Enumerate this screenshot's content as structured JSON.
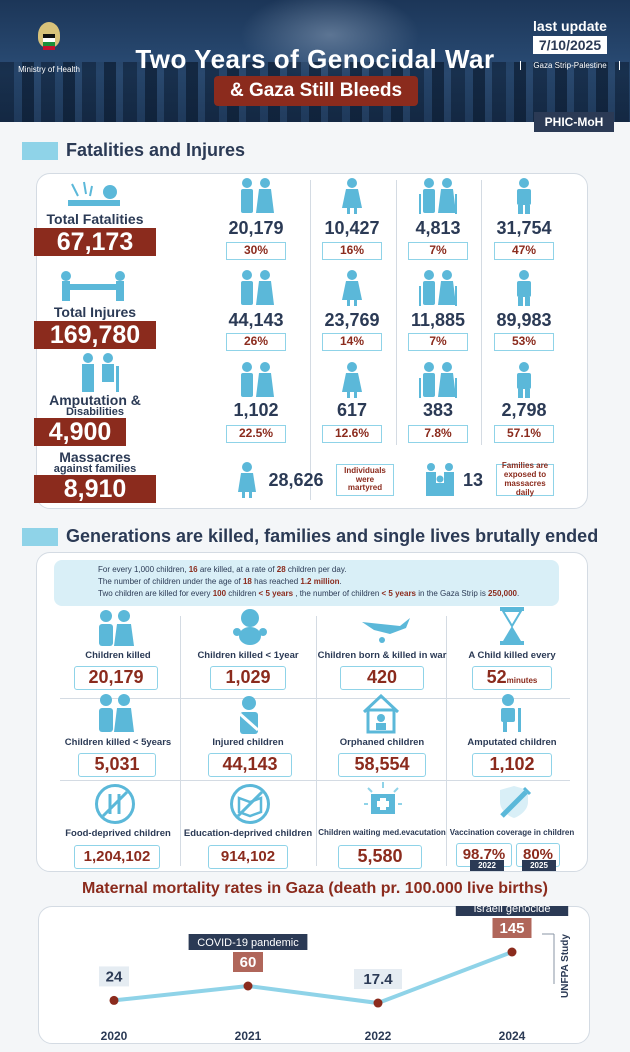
{
  "header": {
    "ministry": "Ministry of Health",
    "title": "Two Years of Genocidal War",
    "subtitle": "& Gaza Still Bleeds",
    "last_update_label": "last update",
    "last_update_date": "7/10/2025",
    "location": "Gaza Strip-Palestine",
    "source_badge": "PHIC-MoH"
  },
  "section1": {
    "heading": "Fatalities and Injures",
    "rows": [
      {
        "label": "Total Fatalities",
        "total": "67,173",
        "stats": [
          {
            "num": "20,179",
            "pct": "30%"
          },
          {
            "num": "10,427",
            "pct": "16%"
          },
          {
            "num": "4,813",
            "pct": "7%"
          },
          {
            "num": "31,754",
            "pct": "47%"
          }
        ]
      },
      {
        "label": "Total Injures",
        "total": "169,780",
        "stats": [
          {
            "num": "44,143",
            "pct": "26%"
          },
          {
            "num": "23,769",
            "pct": "14%"
          },
          {
            "num": "11,885",
            "pct": "7%"
          },
          {
            "num": "89,983",
            "pct": "53%"
          }
        ]
      },
      {
        "label_line1": "Amputation &",
        "label_line2": "Disabilities",
        "total": "4,900",
        "stats": [
          {
            "num": "1,102",
            "pct": "22.5%"
          },
          {
            "num": "617",
            "pct": "12.6%"
          },
          {
            "num": "383",
            "pct": "7.8%"
          },
          {
            "num": "2,798",
            "pct": "57.1%"
          }
        ]
      }
    ],
    "massacres": {
      "label_line1": "Massacres",
      "label_line2": "against families",
      "total": "8,910",
      "individuals_num": "28,626",
      "individuals_note": "Individuals were martyred",
      "families_num": "13",
      "families_note": "Families are exposed to massacres daily"
    }
  },
  "section2": {
    "heading": "Generations are killed, families and single lives brutally ended",
    "info": {
      "l1_a": "For every 1,000 children, ",
      "l1_b": "16",
      "l1_c": " are killed, at a rate of ",
      "l1_d": "28",
      "l1_e": " children per day.",
      "l2_a": "The number of children under the age of ",
      "l2_b": "18",
      "l2_c": " has reached ",
      "l2_d": "1.2 million",
      "l2_e": ".",
      "l3_a": "Two children are killed for every ",
      "l3_b": "100",
      "l3_c": " children ",
      "l3_d": "< 5 years",
      "l3_e": " , the number of children ",
      "l3_f": "< 5 years",
      "l3_g": " in the Gaza Strip is ",
      "l3_h": "250,000",
      "l3_i": "."
    },
    "cards": [
      {
        "label": "Children killed",
        "value": "20,179"
      },
      {
        "label": "Children killed < 1year",
        "value": "1,029"
      },
      {
        "label": "Children born & killed in war",
        "value": "420"
      },
      {
        "label": "A Child killed every",
        "value": "52",
        "unit": "minutes"
      },
      {
        "label": "Children killed < 5years",
        "value": "5,031"
      },
      {
        "label": "Injured children",
        "value": "44,143"
      },
      {
        "label": "Orphaned children",
        "value": "58,554"
      },
      {
        "label": "Amputated children",
        "value": "1,102"
      },
      {
        "label": "Food-deprived children",
        "value": "1,204,102"
      },
      {
        "label": "Education-deprived children",
        "value": "914,102"
      },
      {
        "label": "Children waiting med.evacutation",
        "value": "5,580"
      },
      {
        "label": "Vaccination coverage in children",
        "value_a": "98.7%",
        "value_b": "80%",
        "year_a": "2022",
        "year_b": "2025"
      }
    ]
  },
  "section3": {
    "heading": "Maternal mortality rates in Gaza (death pr. 100.000 live births)",
    "annotation_covid": "COVID-19 pandemic",
    "annotation_genocide": "Israeli genocide",
    "source": "UNFPA Study"
  },
  "chart_data": {
    "type": "line",
    "title": "Maternal mortality rates in Gaza (death pr. 100.000 live births)",
    "categories": [
      "2020",
      "2021",
      "2022",
      "2024"
    ],
    "values": [
      24,
      60,
      17.4,
      145
    ],
    "value_labels": [
      "24",
      "60",
      "17.4",
      "145"
    ],
    "xlabel": "",
    "ylabel": "",
    "ylim": [
      0,
      160
    ],
    "annotations": [
      {
        "x": "2021",
        "text": "COVID-19 pandemic"
      },
      {
        "x": "2024",
        "text": "Israeli genocide"
      }
    ],
    "colors": {
      "line": "#8fd3e8",
      "point": "#8b2b1d",
      "label_bg": "#e5ecf2",
      "label_highlight": "#b0665a"
    }
  },
  "colors": {
    "navy": "#2b3a55",
    "maroon": "#8b2b1d",
    "cyan": "#5bb8d9",
    "light_cyan": "#8fd3e8"
  }
}
